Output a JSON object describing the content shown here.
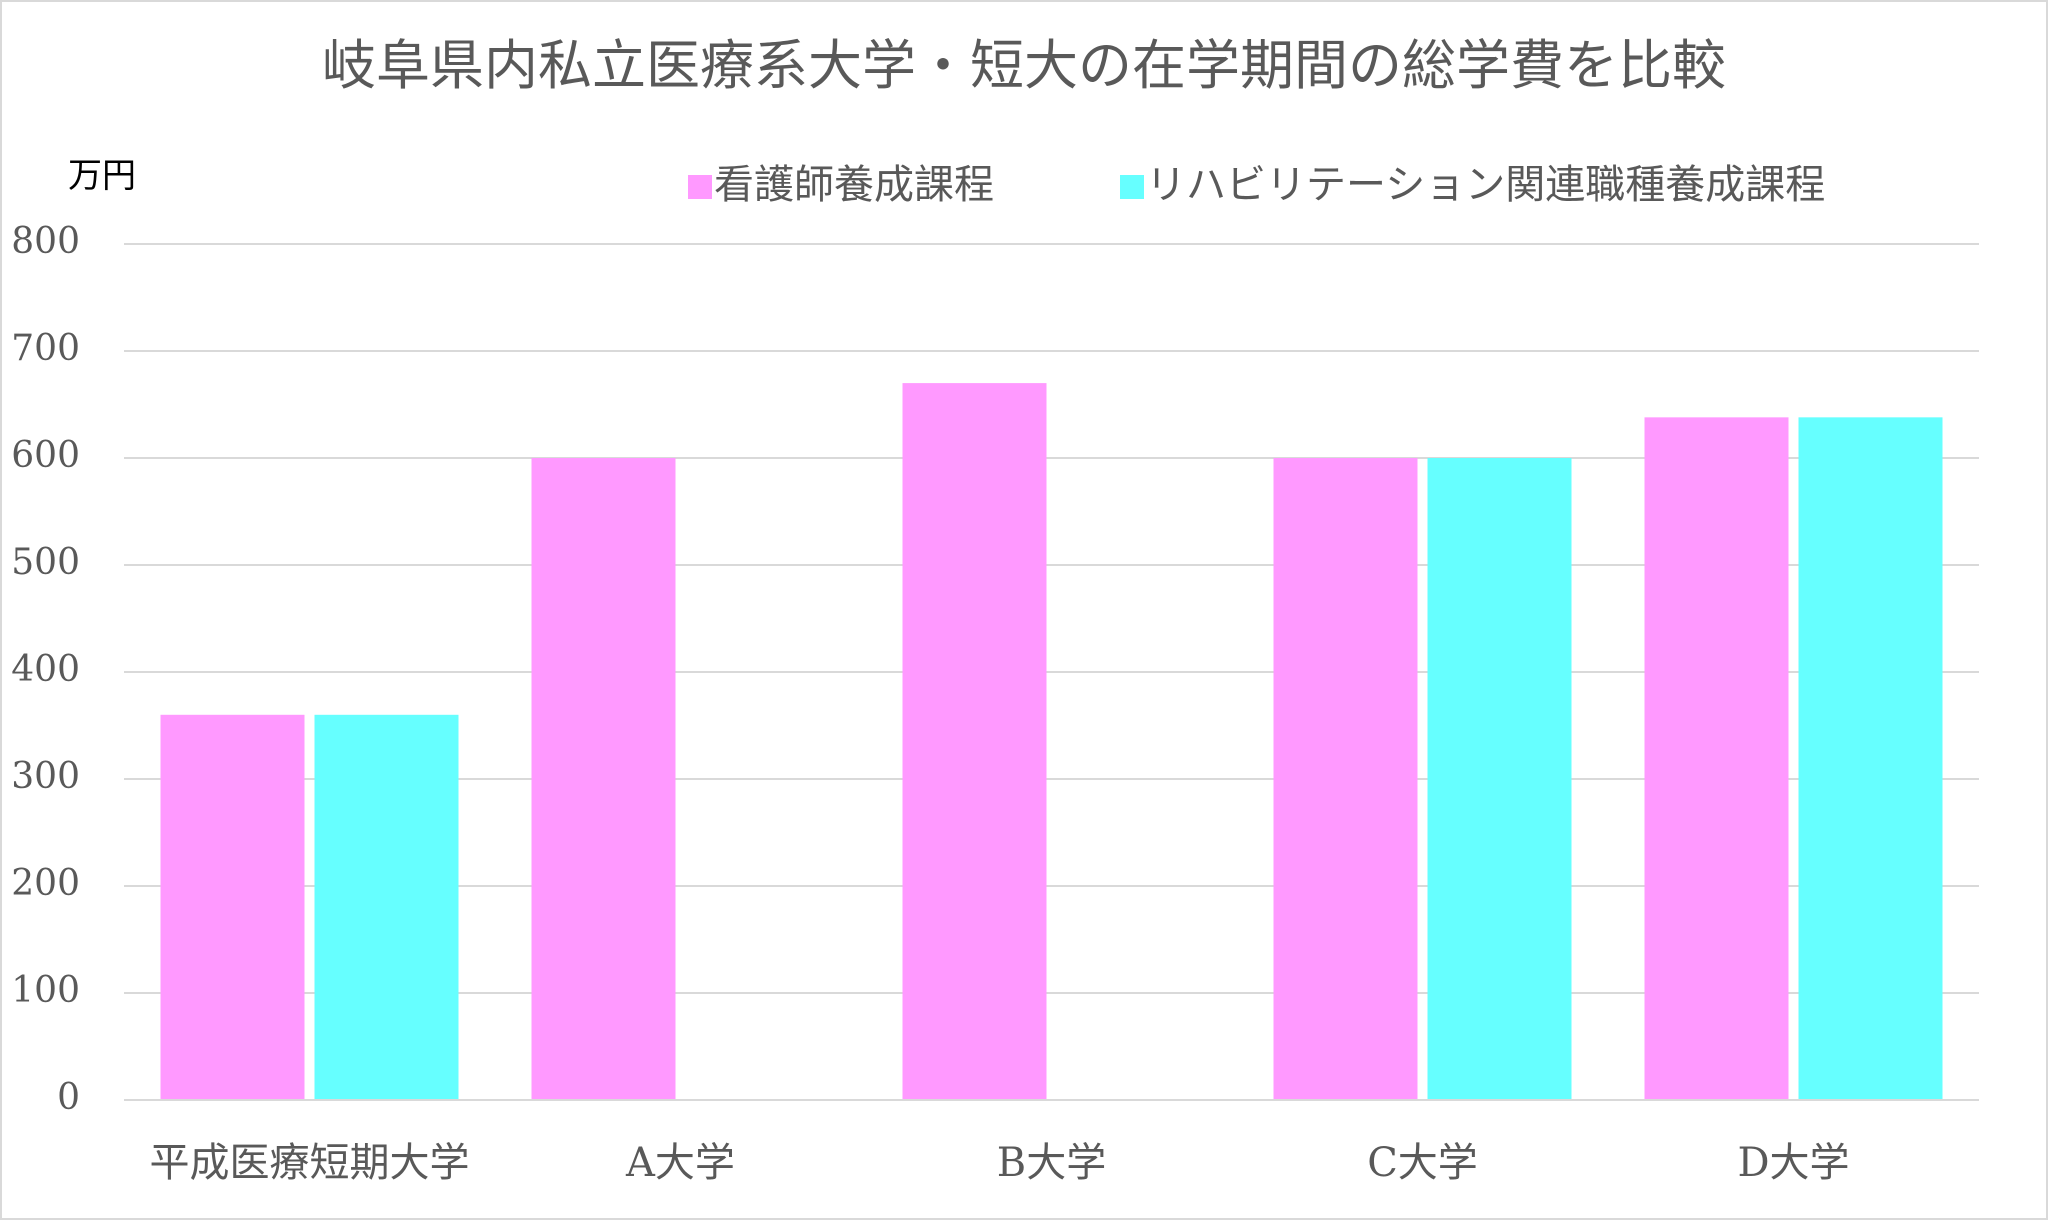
{
  "chart_data": {
    "type": "bar",
    "title": "岐阜県内私立医療系大学・短大の在学期間の総学費を比較",
    "y_unit": "万円",
    "categories": [
      "平成医療短期大学",
      "A大学",
      "B大学",
      "C大学",
      "D大学"
    ],
    "series": [
      {
        "name": "看護師養成課程",
        "color": "#ff99ff",
        "values": [
          360,
          600,
          670,
          600,
          638
        ]
      },
      {
        "name": "リハビリテーション関連職種養成課程",
        "color": "#66ffff",
        "values": [
          360,
          null,
          null,
          600,
          638
        ]
      }
    ],
    "ylim": [
      0,
      800
    ],
    "yticks": [
      0,
      100,
      200,
      300,
      400,
      500,
      600,
      700,
      800
    ],
    "grid": true,
    "legend": "top"
  }
}
